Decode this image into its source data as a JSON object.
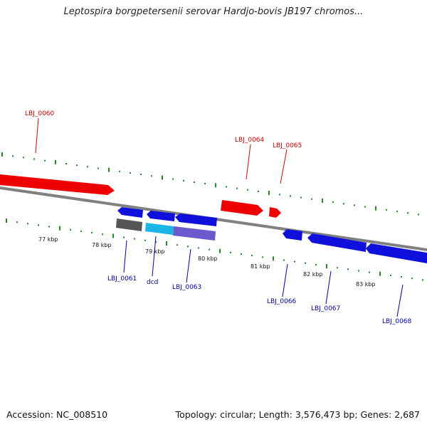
{
  "title": "Leptospira borgpetersenii serovar Hardjo-bovis JB197 chromos...",
  "footer": {
    "accession": "Accession: NC_008510",
    "summary": "Topology: circular; Length: 3,576,473 bp; Genes: 2,687"
  },
  "colors": {
    "forward_gene": "#ee0000",
    "reverse_gene": "#1010dd",
    "forward_label": "#cc0000",
    "reverse_label": "#000099",
    "tick": "#228822",
    "backbone": "#808080",
    "gray_feature": "#555555",
    "cyan_feature": "#19b6e6",
    "purple_feature": "#6a5acd"
  },
  "scale_labels": [
    "77 kbp",
    "78 kbp",
    "79 kbp",
    "80 kbp",
    "81 kbp",
    "82 kbp",
    "83 kbp"
  ],
  "forward_labels": [
    "LBJ_0060",
    "LBJ_0064",
    "LBJ_0065"
  ],
  "reverse_labels": [
    "LBJ_0061",
    "dcd",
    "LBJ_0063",
    "LBJ_0066",
    "LBJ_0067",
    "LBJ_0068"
  ]
}
